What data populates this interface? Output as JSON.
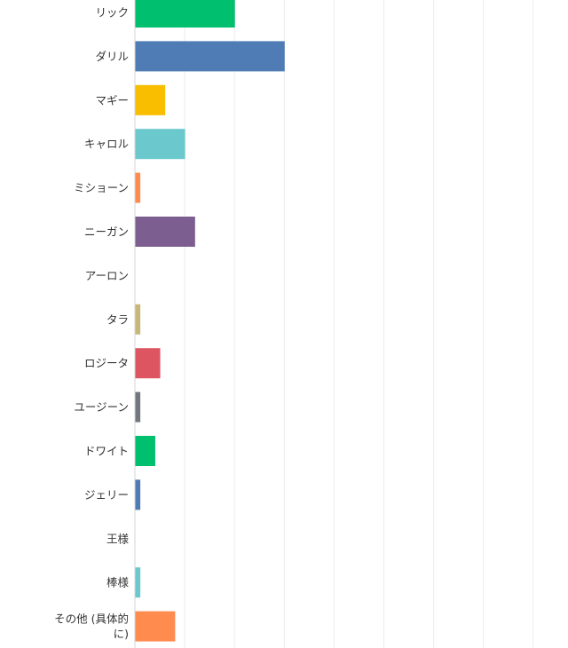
{
  "chart_data": {
    "type": "bar",
    "orientation": "horizontal",
    "categories": [
      "リック",
      "ダリル",
      "マギー",
      "キャロル",
      "ミショーン",
      "ニーガン",
      "アーロン",
      "タラ",
      "ロジータ",
      "ユージーン",
      "ドワイト",
      "ジェリー",
      "王様",
      "棒様",
      "その他 (具体的に)"
    ],
    "category_lines": [
      [
        "リック"
      ],
      [
        "ダリル"
      ],
      [
        "マギー"
      ],
      [
        "キャロル"
      ],
      [
        "ミショーン"
      ],
      [
        "ニーガン"
      ],
      [
        "アーロン"
      ],
      [
        "タラ"
      ],
      [
        "ロジータ"
      ],
      [
        "ユージーン"
      ],
      [
        "ドワイト"
      ],
      [
        "ジェリー"
      ],
      [
        "王様"
      ],
      [
        "棒様"
      ],
      [
        "その他 (具体的",
        "に)"
      ]
    ],
    "values": [
      20,
      30,
      6,
      10,
      1,
      12,
      0,
      1,
      5,
      1,
      4,
      1,
      0,
      1,
      8
    ],
    "colors": [
      "#00bf6f",
      "#507cb6",
      "#f9be00",
      "#6bc8cd",
      "#ff8b4f",
      "#7d5e90",
      "#d25f90",
      "#c7b879",
      "#dd5560",
      "#71777d",
      "#00bf6f",
      "#507cb6",
      "#f9be00",
      "#6bc8cd",
      "#ff8b4f"
    ],
    "xlim": [
      0,
      100
    ],
    "grid": true,
    "title": "",
    "xlabel": "",
    "ylabel": ""
  }
}
